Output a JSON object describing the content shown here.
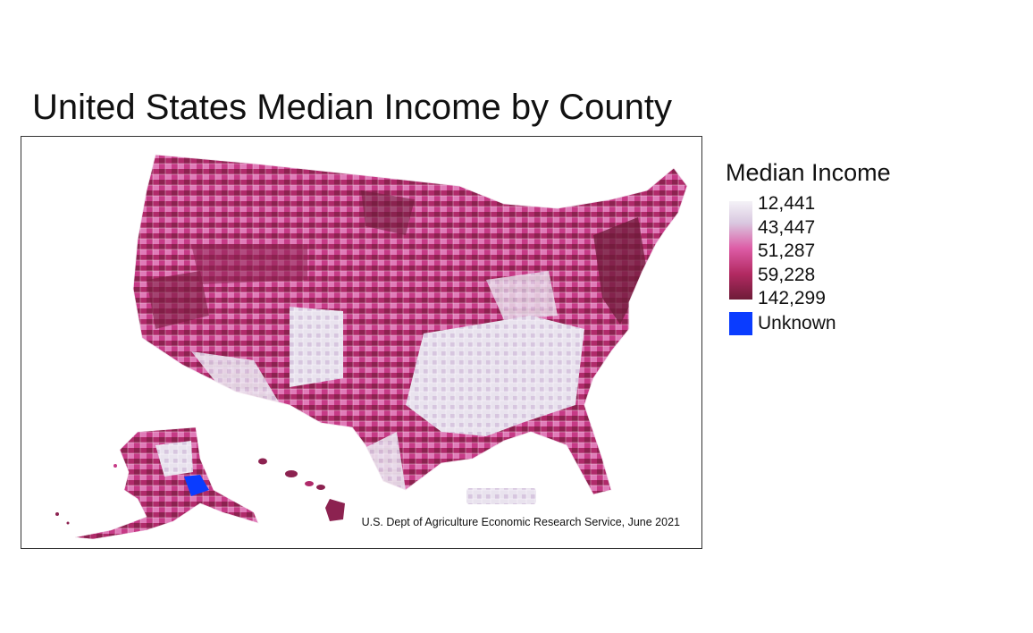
{
  "title": "United States Median Income by County",
  "source": "U.S. Dept of Agriculture Economic Research Service, June 2021",
  "legend": {
    "title": "Median Income",
    "breaks": [
      "12,441",
      "43,447",
      "51,287",
      "59,228",
      "142,299"
    ],
    "unknown_label": "Unknown",
    "colors": {
      "low": "#f4f2f7",
      "low_mid": "#d9c8e0",
      "mid": "#dd5ca6",
      "high_mid": "#b22a62",
      "high": "#6e1b38",
      "unknown": "#0a3cff"
    }
  }
}
